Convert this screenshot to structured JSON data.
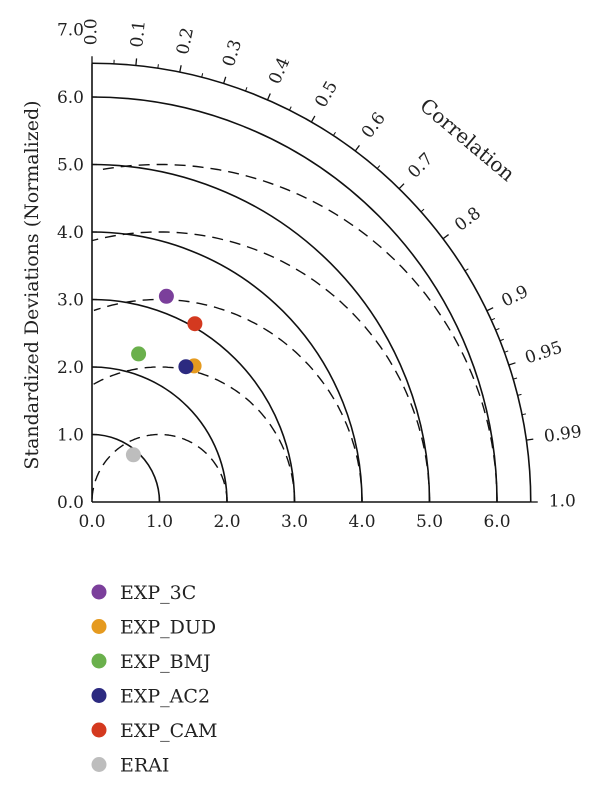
{
  "chart_data": {
    "type": "scatter",
    "subtype": "taylor-diagram",
    "ylabel": "Standardized Deviations (Normalized)",
    "angular_label": "Correlation",
    "std_axis_max": 6.5,
    "x_ticks": [
      "0.0",
      "1.0",
      "2.0",
      "3.0",
      "4.0",
      "5.0",
      "6.0"
    ],
    "y_ticks": [
      "0.0",
      "1.0",
      "2.0",
      "3.0",
      "4.0",
      "5.0",
      "6.0",
      "7.0"
    ],
    "corr_ticks": [
      "0.0",
      "0.1",
      "0.2",
      "0.3",
      "0.4",
      "0.5",
      "0.6",
      "0.7",
      "0.8",
      "0.9",
      "0.95",
      "0.99",
      "1.0"
    ],
    "std_arcs": [
      1,
      2,
      3,
      4,
      5,
      6
    ],
    "rms_arcs": [
      1,
      2,
      3,
      4,
      5
    ],
    "points": [
      {
        "name": "EXP_3C",
        "std": 3.24,
        "corr": 0.34,
        "color": "#7b3f9b"
      },
      {
        "name": "EXP_DUD",
        "std": 2.52,
        "corr": 0.6,
        "color": "#e59a1f"
      },
      {
        "name": "EXP_BMJ",
        "std": 2.3,
        "corr": 0.3,
        "color": "#6ab04c"
      },
      {
        "name": "EXP_AC2",
        "std": 2.44,
        "corr": 0.57,
        "color": "#2c2a80"
      },
      {
        "name": "EXP_CAM",
        "std": 3.05,
        "corr": 0.5,
        "color": "#d4391f"
      },
      {
        "name": "ERAI",
        "std": 0.93,
        "corr": 0.66,
        "color": "#bdbdbd"
      }
    ]
  }
}
